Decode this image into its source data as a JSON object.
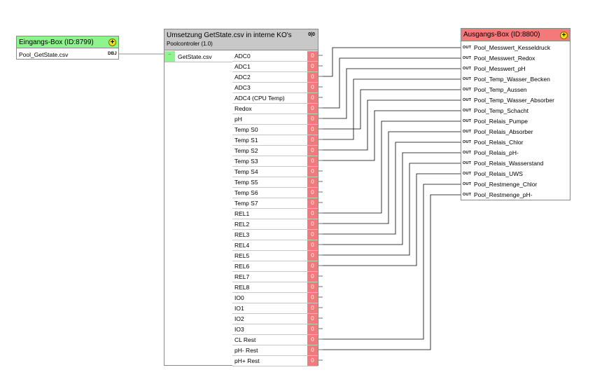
{
  "input_box": {
    "title": "Eingangs-Box (ID:8799)",
    "add_button": "+",
    "row_label": "Pool_GetState.csv",
    "row_tag": "DBJ"
  },
  "module": {
    "title": "Umsetzung GetState.csv in interne KO's",
    "subtitle": "Poolcontroler (1.0)",
    "icon_text": "0|0",
    "input_tag": "...",
    "input_label": "GetState.csv",
    "outputs": [
      {
        "label": "ADC0",
        "value": "0"
      },
      {
        "label": "ADC1",
        "value": "0"
      },
      {
        "label": "ADC2",
        "value": "0"
      },
      {
        "label": "ADC3",
        "value": "0"
      },
      {
        "label": "ADC4 (CPU Temp)",
        "value": "0"
      },
      {
        "label": "Redox",
        "value": "0"
      },
      {
        "label": "pH",
        "value": "0"
      },
      {
        "label": "Temp S0",
        "value": "0"
      },
      {
        "label": "Temp S1",
        "value": "0"
      },
      {
        "label": "Temp S2",
        "value": "0"
      },
      {
        "label": "Temp S3",
        "value": "0"
      },
      {
        "label": "Temp S4",
        "value": "0"
      },
      {
        "label": "Temp S5",
        "value": "0"
      },
      {
        "label": "Temp S6",
        "value": "0"
      },
      {
        "label": "Temp S7",
        "value": "0"
      },
      {
        "label": "REL1",
        "value": "0"
      },
      {
        "label": "REL2",
        "value": "0"
      },
      {
        "label": "REL3",
        "value": "0"
      },
      {
        "label": "REL4",
        "value": "0"
      },
      {
        "label": "REL5",
        "value": "0"
      },
      {
        "label": "REL6",
        "value": "0"
      },
      {
        "label": "REL7",
        "value": "0"
      },
      {
        "label": "REL8",
        "value": "0"
      },
      {
        "label": "IO0",
        "value": "0"
      },
      {
        "label": "IO1",
        "value": "0"
      },
      {
        "label": "IO2",
        "value": "0"
      },
      {
        "label": "IO3",
        "value": "0"
      },
      {
        "label": "CL Rest",
        "value": "0"
      },
      {
        "label": "pH- Rest",
        "value": "0"
      },
      {
        "label": "pH+ Rest",
        "value": "0"
      }
    ]
  },
  "output_box": {
    "title": "Ausgangs-Box (ID:8800)",
    "add_button": "+",
    "rows": [
      {
        "tag": "OUT",
        "label": "Pool_Messwert_Kesseldruck"
      },
      {
        "tag": "OUT",
        "label": "Pool_Messwert_Redox"
      },
      {
        "tag": "OUT",
        "label": "Pool_Messwert_pH"
      },
      {
        "tag": "OUT",
        "label": "Pool_Temp_Wasser_Becken"
      },
      {
        "tag": "OUT",
        "label": "Pool_Temp_Aussen"
      },
      {
        "tag": "OUT",
        "label": "Pool_Temp_Wasser_Absorber"
      },
      {
        "tag": "OUT",
        "label": "Pool_Temp_Schacht"
      },
      {
        "tag": "OUT",
        "label": "Pool_Relais_Pumpe"
      },
      {
        "tag": "OUT",
        "label": "Pool_Relais_Absorber"
      },
      {
        "tag": "OUT",
        "label": "Pool_Relais_Chlor"
      },
      {
        "tag": "OUT",
        "label": "Pool_Relais_pH-"
      },
      {
        "tag": "OUT",
        "label": "Pool_Relais_Wasserstand"
      },
      {
        "tag": "OUT",
        "label": "Pool_Relais_UWS"
      },
      {
        "tag": "OUT",
        "label": "Pool_Restmenge_Chlor"
      },
      {
        "tag": "OUT",
        "label": "Pool_Restmenge_pH-"
      }
    ]
  },
  "connections": [
    {
      "from": "ADC2",
      "to": "Pool_Messwert_Kesseldruck"
    },
    {
      "from": "Redox",
      "to": "Pool_Messwert_Redox"
    },
    {
      "from": "pH",
      "to": "Pool_Messwert_pH"
    },
    {
      "from": "Temp S1",
      "to": "Pool_Temp_Wasser_Becken"
    },
    {
      "from": "Temp S0",
      "to": "Pool_Temp_Aussen"
    },
    {
      "from": "Temp S2",
      "to": "Pool_Temp_Wasser_Absorber"
    },
    {
      "from": "Temp S3",
      "to": "Pool_Temp_Schacht"
    },
    {
      "from": "REL1",
      "to": "Pool_Relais_Pumpe"
    },
    {
      "from": "REL2",
      "to": "Pool_Relais_Absorber"
    },
    {
      "from": "REL3",
      "to": "Pool_Relais_Chlor"
    },
    {
      "from": "REL4",
      "to": "Pool_Relais_pH-"
    },
    {
      "from": "REL5",
      "to": "Pool_Relais_Wasserstand"
    },
    {
      "from": "REL6",
      "to": "Pool_Relais_UWS"
    },
    {
      "from": "CL Rest",
      "to": "Pool_Restmenge_Chlor"
    },
    {
      "from": "pH- Rest",
      "to": "Pool_Restmenge_pH-"
    }
  ]
}
